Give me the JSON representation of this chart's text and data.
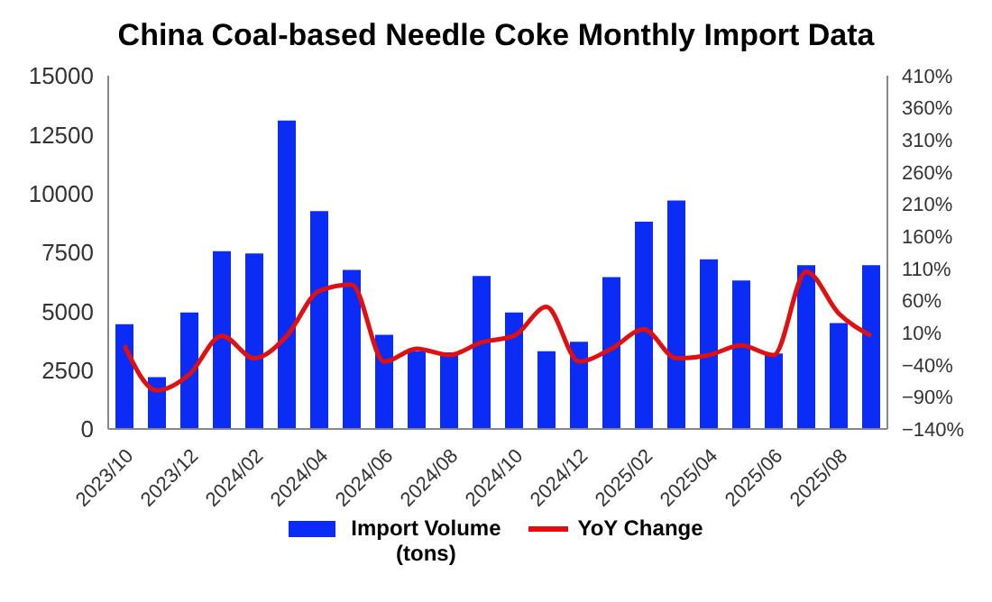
{
  "chart_data": {
    "type": "bar",
    "title": "China Coal-based Needle Coke Monthly Import Data",
    "categories": [
      "2023/10",
      null,
      "2023/12",
      null,
      "2024/02",
      null,
      "2024/04",
      null,
      "2024/06",
      null,
      "2024/08",
      null,
      "2024/10",
      null,
      "2024/12",
      null,
      "2025/02",
      null,
      "2025/04",
      null,
      "2025/06",
      null,
      "2025/08",
      null
    ],
    "series": [
      {
        "name": "Import Volume (tons)",
        "color": "#0a2cf5",
        "values": [
          4450,
          2200,
          4950,
          7550,
          7450,
          13100,
          9250,
          6750,
          4000,
          3300,
          3250,
          6500,
          4950,
          3300,
          3700,
          6450,
          8800,
          9700,
          7200,
          6300,
          3200,
          6950,
          4500,
          6950
        ]
      },
      {
        "name": "YoY Change",
        "type": "line",
        "axis": "y2",
        "color": "#e01010",
        "values": [
          -10,
          -80,
          -55,
          5,
          -30,
          5,
          75,
          85,
          -35,
          -15,
          -25,
          -5,
          5,
          50,
          -35,
          -15,
          15,
          -30,
          -25,
          -10,
          -25,
          105,
          40,
          5
        ]
      }
    ],
    "ylim": [
      0,
      15000
    ],
    "yticks": [
      0,
      2500,
      5000,
      7500,
      10000,
      12500,
      15000
    ],
    "y2lim": [
      -140,
      410
    ],
    "y2ticks": [
      {
        "value": -140,
        "label": "−140%"
      },
      {
        "value": -90,
        "label": "−90%"
      },
      {
        "value": -40,
        "label": "−40%"
      },
      {
        "value": 10,
        "label": "10%"
      },
      {
        "value": 60,
        "label": "60%"
      },
      {
        "value": 110,
        "label": "110%"
      },
      {
        "value": 160,
        "label": "160%"
      },
      {
        "value": 210,
        "label": "210%"
      },
      {
        "value": 260,
        "label": "260%"
      },
      {
        "value": 310,
        "label": "310%"
      },
      {
        "value": 360,
        "label": "360%"
      },
      {
        "value": 410,
        "label": "410%"
      }
    ],
    "grid": false,
    "legend": "bottom",
    "marker": "none",
    "line_style": "solid"
  }
}
